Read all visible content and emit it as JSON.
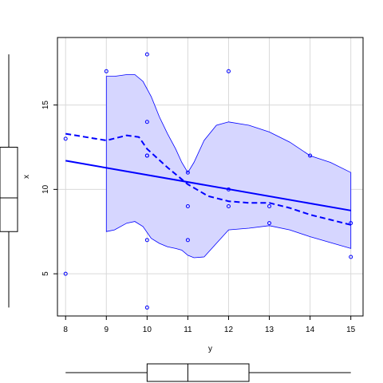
{
  "chart_data": {
    "type": "scatter",
    "title": "",
    "xlabel": "y",
    "ylabel": "x",
    "xlim": [
      7.8,
      15.3
    ],
    "ylim": [
      2.5,
      19.0
    ],
    "xticks": [
      8,
      9,
      10,
      11,
      12,
      13,
      14,
      15
    ],
    "yticks": [
      5,
      10,
      15
    ],
    "x_tick_labels": [
      "8",
      "9",
      "10",
      "11",
      "12",
      "13",
      "14",
      "15"
    ],
    "y_tick_labels": [
      "5",
      "10",
      "15"
    ],
    "grid": true,
    "colors": {
      "series": "#0000ff",
      "band_fill": "#d6d6ff",
      "grid": "#d9d9d9",
      "axis": "#000000"
    },
    "points": [
      {
        "x": 8,
        "y": 13
      },
      {
        "x": 8,
        "y": 5
      },
      {
        "x": 9,
        "y": 17
      },
      {
        "x": 10,
        "y": 18
      },
      {
        "x": 10,
        "y": 14
      },
      {
        "x": 10,
        "y": 12
      },
      {
        "x": 10,
        "y": 12
      },
      {
        "x": 10,
        "y": 7
      },
      {
        "x": 10,
        "y": 3
      },
      {
        "x": 11,
        "y": 11
      },
      {
        "x": 11,
        "y": 9
      },
      {
        "x": 11,
        "y": 7
      },
      {
        "x": 12,
        "y": 17
      },
      {
        "x": 12,
        "y": 10
      },
      {
        "x": 12,
        "y": 9
      },
      {
        "x": 13,
        "y": 9
      },
      {
        "x": 13,
        "y": 8
      },
      {
        "x": 14,
        "y": 12
      },
      {
        "x": 15,
        "y": 8
      },
      {
        "x": 15,
        "y": 6
      }
    ],
    "regression_line": {
      "x": [
        8,
        15
      ],
      "y": [
        11.7,
        8.75
      ]
    },
    "smooth_line": {
      "x": [
        8,
        8.5,
        9,
        9.5,
        9.8,
        10,
        10.5,
        11,
        11.5,
        12,
        12.5,
        13,
        13.5,
        14,
        14.5,
        15
      ],
      "y": [
        13.3,
        13.1,
        12.9,
        13.2,
        13.1,
        12.4,
        11.3,
        10.3,
        9.6,
        9.3,
        9.2,
        9.2,
        8.9,
        8.5,
        8.2,
        7.9
      ]
    },
    "confidence_band": {
      "x": [
        9,
        9.2,
        9.5,
        9.7,
        9.9,
        10.1,
        10.3,
        10.5,
        10.7,
        10.85,
        11,
        11.15,
        11.4,
        11.7,
        12,
        12.5,
        13,
        13.5,
        14,
        14.5,
        15
      ],
      "upper": [
        16.7,
        16.7,
        16.8,
        16.8,
        16.4,
        15.5,
        14.3,
        13.3,
        12.4,
        11.6,
        11.0,
        11.6,
        12.9,
        13.8,
        14.0,
        13.8,
        13.4,
        12.8,
        12.0,
        11.6,
        11.0
      ],
      "lower": [
        7.5,
        7.6,
        8.0,
        8.1,
        7.8,
        7.1,
        6.8,
        6.6,
        6.5,
        6.4,
        6.1,
        5.95,
        6.0,
        6.8,
        7.6,
        7.7,
        7.85,
        7.6,
        7.2,
        6.85,
        6.5
      ]
    },
    "x_boxplot": {
      "whisker_low": 8,
      "q1": 10,
      "median": 11,
      "q3": 12.5,
      "whisker_high": 15
    },
    "y_boxplot": {
      "whisker_low": 3,
      "q1": 7.5,
      "median": 9.5,
      "q3": 12.5,
      "whisker_high": 18
    }
  }
}
